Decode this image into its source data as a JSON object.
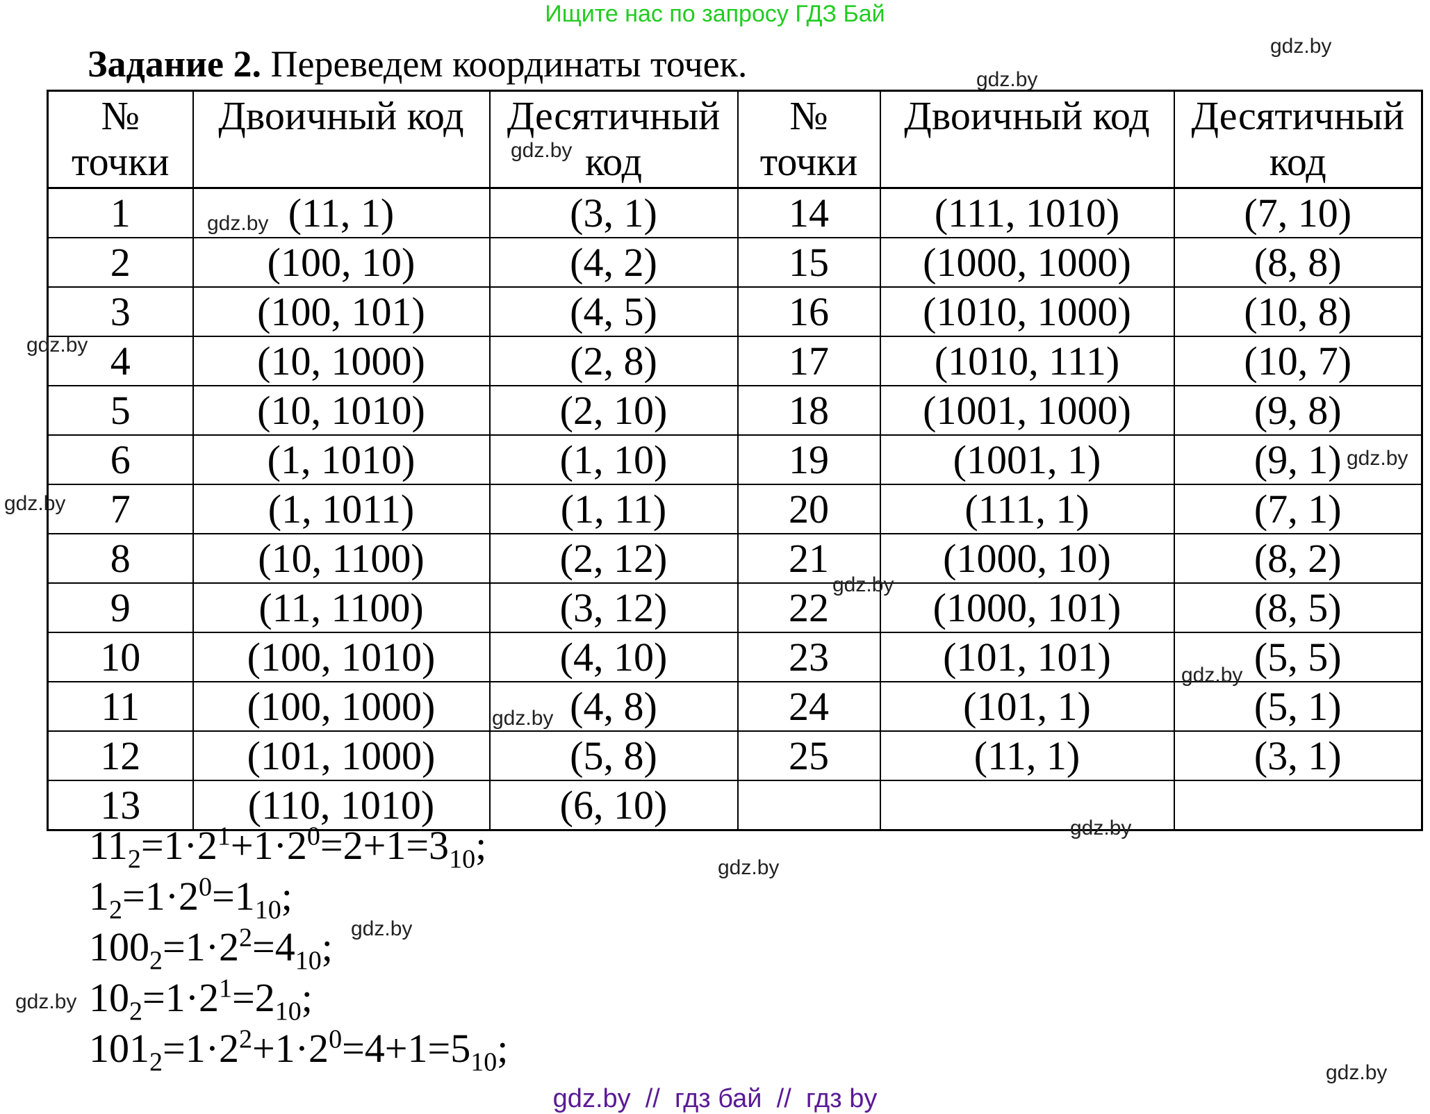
{
  "banner": "Ищите нас по запросу ГДЗ Бай",
  "title": {
    "bold": "Задание 2.",
    "text": " Переведем координаты точек."
  },
  "table": {
    "headers": [
      {
        "line1": "№",
        "line2": "точки"
      },
      {
        "line1": "Двоичный код",
        "line2": ""
      },
      {
        "line1": "Десятичный",
        "line2": "код"
      },
      {
        "line1": "№",
        "line2": "точки"
      },
      {
        "line1": "Двоичный код",
        "line2": ""
      },
      {
        "line1": "Десятичный",
        "line2": "код"
      }
    ],
    "rows": [
      [
        "1",
        "(11, 1)",
        "(3, 1)",
        "14",
        "(111, 1010)",
        "(7, 10)"
      ],
      [
        "2",
        "(100, 10)",
        "(4, 2)",
        "15",
        "(1000, 1000)",
        "(8, 8)"
      ],
      [
        "3",
        "(100, 101)",
        "(4, 5)",
        "16",
        "(1010, 1000)",
        "(10, 8)"
      ],
      [
        "4",
        "(10, 1000)",
        "(2, 8)",
        "17",
        "(1010, 111)",
        "(10, 7)"
      ],
      [
        "5",
        "(10, 1010)",
        "(2, 10)",
        "18",
        "(1001, 1000)",
        "(9, 8)"
      ],
      [
        "6",
        "(1, 1010)",
        "(1, 10)",
        "19",
        "(1001, 1)",
        "(9, 1)"
      ],
      [
        "7",
        "(1, 1011)",
        "(1, 11)",
        "20",
        "(111, 1)",
        "(7, 1)"
      ],
      [
        "8",
        "(10, 1100)",
        "(2, 12)",
        "21",
        "(1000, 10)",
        "(8, 2)"
      ],
      [
        "9",
        "(11, 1100)",
        "(3, 12)",
        "22",
        "(1000, 101)",
        "(8, 5)"
      ],
      [
        "10",
        "(100, 1010)",
        "(4, 10)",
        "23",
        "(101, 101)",
        "(5, 5)"
      ],
      [
        "11",
        "(100, 1000)",
        "(4, 8)",
        "24",
        "(101, 1)",
        "(5, 1)"
      ],
      [
        "12",
        "(101, 1000)",
        "(5, 8)",
        "25",
        "(11, 1)",
        "(3, 1)"
      ],
      [
        "13",
        "(110, 1010)",
        "(6, 10)",
        "",
        "",
        ""
      ]
    ]
  },
  "formulas": [
    "11<sub>2</sub>=1·2<sup>1</sup>+1·2<sup>0</sup>=2+1=3<sub>10</sub>;",
    "1<sub>2</sub>=1·2<sup>0</sup>=1<sub>10</sub>;",
    "100<sub>2</sub>=1·2<sup>2</sup>=4<sub>10</sub>;",
    "10<sub>2</sub>=1·2<sup>1</sup>=2<sub>10</sub>;",
    "101<sub>2</sub>=1·2<sup>2</sup>+1·2<sup>0</sup>=4+1=5<sub>10</sub>;"
  ],
  "watermark": "gdz.by",
  "footer": "gdz.by  //  гдз бай  //  гдз by"
}
